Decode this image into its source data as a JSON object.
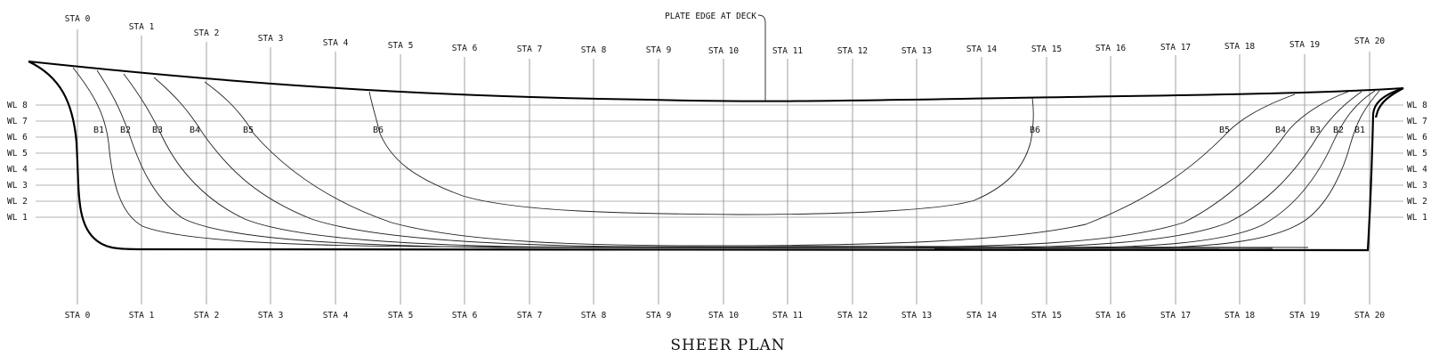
{
  "title": "SHEER PLAN",
  "deck_note": "PLATE EDGE AT DECK",
  "stations": [
    "STA 0",
    "STA 1",
    "STA 2",
    "STA 3",
    "STA 4",
    "STA 5",
    "STA 6",
    "STA 7",
    "STA 8",
    "STA 9",
    "STA 10",
    "STA 11",
    "STA 12",
    "STA 13",
    "STA 14",
    "STA 15",
    "STA 16",
    "STA 17",
    "STA 18",
    "STA 19",
    "STA 20"
  ],
  "waterlines": [
    "WL 8",
    "WL 7",
    "WL 6",
    "WL 5",
    "WL 4",
    "WL 3",
    "WL 2",
    "WL 1"
  ],
  "buttocks_aft": [
    "B1",
    "B2",
    "B3",
    "B4",
    "B5",
    "B6"
  ],
  "buttocks_fwd": [
    "B6",
    "B5",
    "B4",
    "B3",
    "B2",
    "B1"
  ]
}
